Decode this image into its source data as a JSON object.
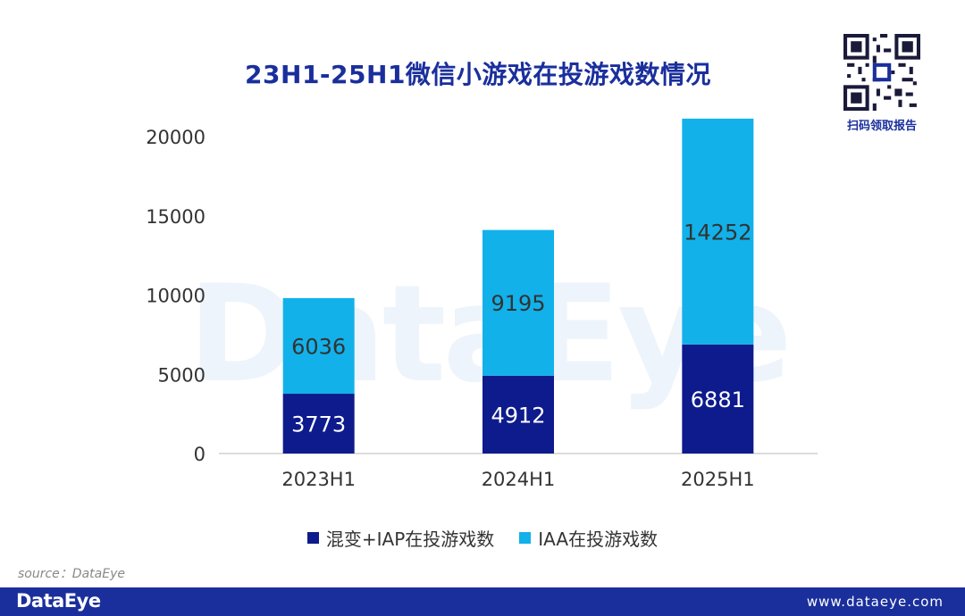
{
  "title": "23H1-25H1微信小游戏在投游戏数情况",
  "qr_caption": "扫码领取报告",
  "watermark": "DataEye",
  "source": "source：DataEye",
  "footer": {
    "logo": "DataEye",
    "url": "www.dataeye.com"
  },
  "colors": {
    "mixed_iap": "#0d1b8c",
    "iaa": "#12b1ea",
    "title": "#1a2f9c",
    "footer": "#1a2f9c"
  },
  "legend": [
    {
      "label": "混变+IAP在投游戏数",
      "color": "#0d1b8c"
    },
    {
      "label": "IAA在投游戏数",
      "color": "#12b1ea"
    }
  ],
  "chart_data": {
    "type": "bar",
    "stacked": true,
    "title": "23H1-25H1微信小游戏在投游戏数情况",
    "xlabel": "",
    "ylabel": "",
    "categories": [
      "2023H1",
      "2024H1",
      "2025H1"
    ],
    "series": [
      {
        "name": "混变+IAP在投游戏数",
        "values": [
          3773,
          4912,
          6881
        ],
        "color": "#0d1b8c"
      },
      {
        "name": "IAA在投游戏数",
        "values": [
          6036,
          9195,
          14252
        ],
        "color": "#12b1ea"
      }
    ],
    "ylim": [
      0,
      20000
    ],
    "yticks": [
      0,
      5000,
      10000,
      15000,
      20000
    ],
    "grid": false,
    "legend_position": "bottom"
  }
}
